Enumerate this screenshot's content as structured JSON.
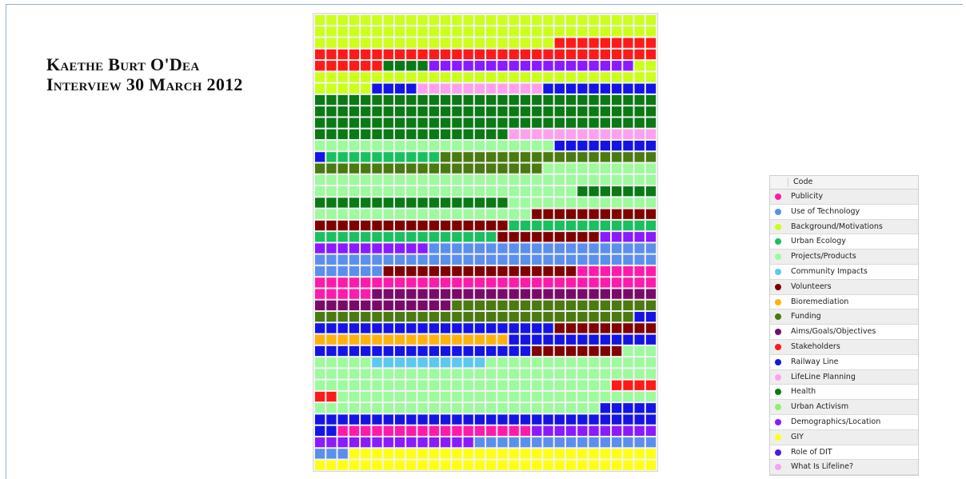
{
  "title": {
    "line1": "Kaethe Burt O'Dea",
    "line2": "Interview 30 March 2012"
  },
  "legend": {
    "header": "Code",
    "items": [
      {
        "label": "Publicity",
        "color": "#ff1aaa"
      },
      {
        "label": "Use of Technology",
        "color": "#5b8fef"
      },
      {
        "label": "Background/Motivations",
        "color": "#ccff1a"
      },
      {
        "label": "Urban Ecology",
        "color": "#19c060"
      },
      {
        "label": "Projects/Products",
        "color": "#9dfa9d"
      },
      {
        "label": "Community Impacts",
        "color": "#5dc8f0"
      },
      {
        "label": "Volunteers",
        "color": "#800000"
      },
      {
        "label": "Bioremediation",
        "color": "#ffb20d"
      },
      {
        "label": "Funding",
        "color": "#4a7a10"
      },
      {
        "label": "Aims/Goals/Objectives",
        "color": "#7a0a6a"
      },
      {
        "label": "Stakeholders",
        "color": "#ff1a1a"
      },
      {
        "label": "Railway Line",
        "color": "#1414e6"
      },
      {
        "label": "LifeLine Planning",
        "color": "#ffa0ef"
      },
      {
        "label": "Health",
        "color": "#0a7a14"
      },
      {
        "label": "Urban Activism",
        "color": "#90f070"
      },
      {
        "label": "Demographics/Location",
        "color": "#8a1aff"
      },
      {
        "label": "GIY",
        "color": "#ffff14"
      },
      {
        "label": "Role of DIT",
        "color": "#4a1ae6"
      },
      {
        "label": "What Is Lifeline?",
        "color": "#f5a5f0"
      }
    ]
  },
  "chart_data": {
    "type": "heatmap",
    "columns": 30,
    "color_keys": {
      "BG": "#ccff1a",
      "ST": "#ff1a1a",
      "HE": "#0a7a14",
      "DE": "#8a1aff",
      "RL": "#1414e6",
      "LP": "#ffa0ef",
      "PP": "#9dfa9d",
      "UE": "#19c060",
      "FU": "#4a7a10",
      "VO": "#800000",
      "UT": "#5b8fef",
      "PU": "#ff1aaa",
      "AI": "#7a0a6a",
      "BI": "#ffb20d",
      "CI": "#5dc8f0",
      "GI": "#ffff14",
      "RD": "#4a1ae6"
    },
    "rows": [
      [
        [
          "BG",
          30
        ]
      ],
      [
        [
          "BG",
          30
        ]
      ],
      [
        [
          "BG",
          21
        ],
        [
          "ST",
          9
        ]
      ],
      [
        [
          "ST",
          30
        ]
      ],
      [
        [
          "ST",
          6
        ],
        [
          "HE",
          4
        ],
        [
          "DE",
          18
        ],
        [
          "BG",
          2
        ]
      ],
      [
        [
          "BG",
          30
        ]
      ],
      [
        [
          "BG",
          5
        ],
        [
          "RL",
          4
        ],
        [
          "LP",
          11
        ],
        [
          "RL",
          10
        ]
      ],
      [
        [
          "HE",
          30
        ]
      ],
      [
        [
          "HE",
          30
        ]
      ],
      [
        [
          "HE",
          30
        ]
      ],
      [
        [
          "HE",
          17
        ],
        [
          "LP",
          13
        ]
      ],
      [
        [
          "PP",
          21
        ],
        [
          "RL",
          9
        ]
      ],
      [
        [
          "RL",
          1
        ],
        [
          "UE",
          10
        ],
        [
          "FU",
          19
        ]
      ],
      [
        [
          "FU",
          20
        ],
        [
          "PP",
          10
        ]
      ],
      [
        [
          "PP",
          30
        ]
      ],
      [
        [
          "PP",
          23
        ],
        [
          "HE",
          7
        ]
      ],
      [
        [
          "HE",
          17
        ],
        [
          "PP",
          13
        ]
      ],
      [
        [
          "PP",
          19
        ],
        [
          "VO",
          11
        ]
      ],
      [
        [
          "VO",
          17
        ],
        [
          "UE",
          13
        ]
      ],
      [
        [
          "UE",
          16
        ],
        [
          "VO",
          9
        ],
        [
          "DE",
          5
        ]
      ],
      [
        [
          "DE",
          10
        ],
        [
          "UT",
          20
        ]
      ],
      [
        [
          "UT",
          30
        ]
      ],
      [
        [
          "UT",
          6
        ],
        [
          "VO",
          17
        ],
        [
          "PU",
          7
        ]
      ],
      [
        [
          "PU",
          30
        ]
      ],
      [
        [
          "PU",
          5
        ],
        [
          "AI",
          25
        ]
      ],
      [
        [
          "AI",
          12
        ],
        [
          "FU",
          18
        ]
      ],
      [
        [
          "FU",
          28
        ],
        [
          "RL",
          2
        ]
      ],
      [
        [
          "RL",
          21
        ],
        [
          "VO",
          9
        ]
      ],
      [
        [
          "BI",
          17
        ],
        [
          "RL",
          13
        ]
      ],
      [
        [
          "RL",
          19
        ],
        [
          "VO",
          8
        ],
        [
          "PP",
          3
        ]
      ],
      [
        [
          "PP",
          5
        ],
        [
          "CI",
          10
        ],
        [
          "PP",
          15
        ]
      ],
      [
        [
          "PP",
          30
        ]
      ],
      [
        [
          "PP",
          26
        ],
        [
          "ST",
          4
        ]
      ],
      [
        [
          "ST",
          2
        ],
        [
          "PP",
          28
        ]
      ],
      [
        [
          "PP",
          25
        ],
        [
          "RL",
          5
        ]
      ],
      [
        [
          "RL",
          30
        ]
      ],
      [
        [
          "RL",
          2
        ],
        [
          "PU",
          17
        ],
        [
          "DE",
          11
        ]
      ],
      [
        [
          "DE",
          14
        ],
        [
          "UT",
          16
        ]
      ],
      [
        [
          "UT",
          3
        ],
        [
          "GI",
          27
        ]
      ],
      [
        [
          "GI",
          30
        ]
      ]
    ]
  }
}
